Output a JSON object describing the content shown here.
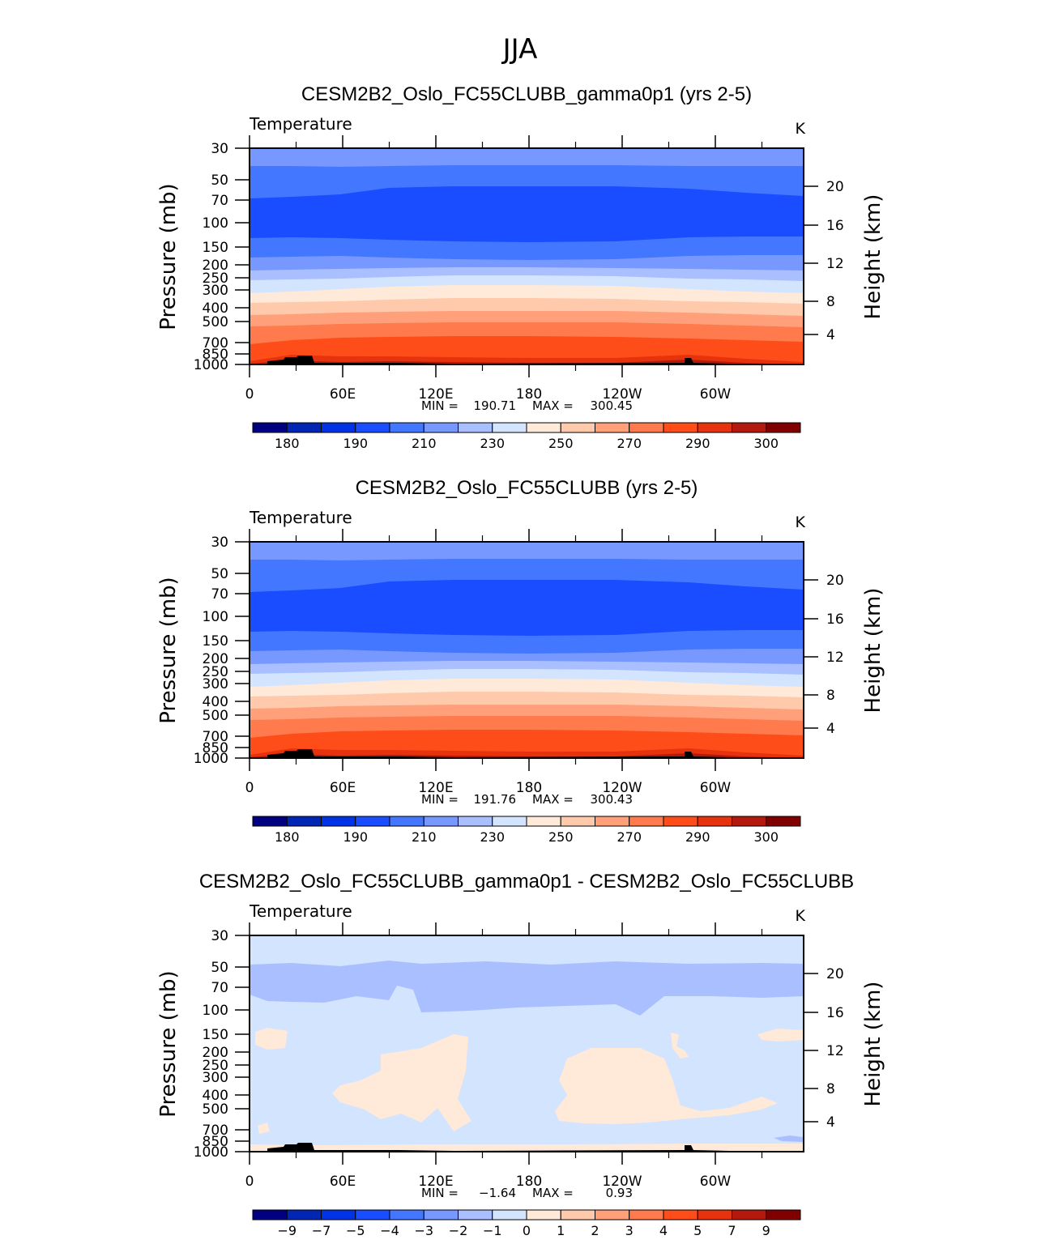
{
  "page_title": "JJA",
  "colors": {
    "temp": [
      "#000080",
      "#0026b3",
      "#0033e6",
      "#1a4dff",
      "#4477ff",
      "#7799ff",
      "#aabfff",
      "#d3e4ff",
      "#ffe9d9",
      "#ffc9ab",
      "#ffa07a",
      "#ff7a4d",
      "#ff4d1a",
      "#e6330d",
      "#b31a0d",
      "#800000"
    ],
    "diff": [
      "#000080",
      "#0026b3",
      "#0033e6",
      "#1a4dff",
      "#4477ff",
      "#7799ff",
      "#aabfff",
      "#d3e4ff",
      "#ffe9d9",
      "#ffc9ab",
      "#ffa07a",
      "#ff7a4d",
      "#ff4d1a",
      "#e6330d",
      "#b31a0d",
      "#800000"
    ]
  },
  "chart_data": [
    {
      "type": "heatmap",
      "title": "CESM2B2_Oslo_FC55CLUBB_gamma0p1 (yrs 2-5)",
      "subtitle_left": "Temperature",
      "units": "K",
      "ylabel": "Pressure (mb)",
      "y2label": "Height (km)",
      "pressure_ticks": [
        "30",
        "50",
        "70",
        "100",
        "150",
        "200",
        "250",
        "300",
        "400",
        "500",
        "700",
        "850",
        "1000"
      ],
      "height_ticks": [
        "20",
        "16",
        "12",
        "8",
        "4"
      ],
      "x_ticks": [
        "0",
        "60E",
        "120E",
        "180",
        "120W",
        "60W"
      ],
      "stats": {
        "min_label": "MIN =",
        "min": "190.71",
        "max_label": "MAX =",
        "max": "300.45"
      },
      "colorbar_labels": [
        "180",
        "190",
        "210",
        "230",
        "250",
        "270",
        "290",
        "300"
      ],
      "palette": "temp"
    },
    {
      "type": "heatmap",
      "title": "CESM2B2_Oslo_FC55CLUBB (yrs 2-5)",
      "subtitle_left": "Temperature",
      "units": "K",
      "ylabel": "Pressure (mb)",
      "y2label": "Height (km)",
      "pressure_ticks": [
        "30",
        "50",
        "70",
        "100",
        "150",
        "200",
        "250",
        "300",
        "400",
        "500",
        "700",
        "850",
        "1000"
      ],
      "height_ticks": [
        "20",
        "16",
        "12",
        "8",
        "4"
      ],
      "x_ticks": [
        "0",
        "60E",
        "120E",
        "180",
        "120W",
        "60W"
      ],
      "stats": {
        "min_label": "MIN =",
        "min": "191.76",
        "max_label": "MAX =",
        "max": "300.43"
      },
      "colorbar_labels": [
        "180",
        "190",
        "210",
        "230",
        "250",
        "270",
        "290",
        "300"
      ],
      "palette": "temp"
    },
    {
      "type": "heatmap",
      "title": "CESM2B2_Oslo_FC55CLUBB_gamma0p1 - CESM2B2_Oslo_FC55CLUBB",
      "subtitle_left": "Temperature",
      "units": "K",
      "ylabel": "Pressure (mb)",
      "y2label": "Height (km)",
      "pressure_ticks": [
        "30",
        "50",
        "70",
        "100",
        "150",
        "200",
        "250",
        "300",
        "400",
        "500",
        "700",
        "850",
        "1000"
      ],
      "height_ticks": [
        "20",
        "16",
        "12",
        "8",
        "4"
      ],
      "x_ticks": [
        "0",
        "60E",
        "120E",
        "180",
        "120W",
        "60W"
      ],
      "stats": {
        "min_label": "MIN =",
        "min": "−1.64",
        "max_label": "MAX =",
        "max": "0.93"
      },
      "colorbar_labels": [
        "−9",
        "−7",
        "−5",
        "−4",
        "−3",
        "−2",
        "−1",
        "0",
        "1",
        "2",
        "3",
        "4",
        "5",
        "7",
        "9"
      ],
      "palette": "diff"
    }
  ]
}
